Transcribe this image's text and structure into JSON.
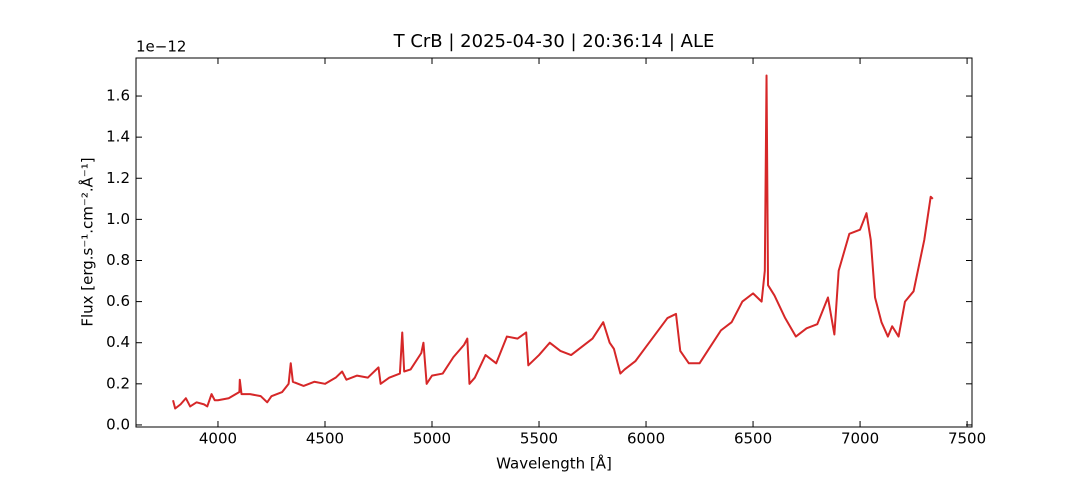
{
  "chart_data": {
    "type": "line",
    "title": "T CrB | 2025-04-30 | 20:36:14 | ALE",
    "x_label": "Wavelength [Å]",
    "y_label": "Flux [erg.s⁻¹.cm⁻².Å⁻¹]",
    "y_offset_label": "1e−12",
    "color": "#d62728",
    "xlim": [
      3617,
      7523
    ],
    "ylim": [
      -0.01,
      1.785
    ],
    "xticks": [
      4000,
      4500,
      5000,
      5500,
      6000,
      6500,
      7000,
      7500
    ],
    "yticks": [
      {
        "value": 0,
        "label": "0.0"
      },
      0.2,
      0.4,
      0.6,
      0.8,
      {
        "value": 1,
        "label": "1.0"
      },
      1.2,
      1.4,
      1.6
    ],
    "x": [
      3790,
      3800,
      3825,
      3850,
      3870,
      3900,
      3935,
      3950,
      3970,
      3985,
      4000,
      4050,
      4100,
      4102,
      4110,
      4150,
      4200,
      4230,
      4250,
      4300,
      4330,
      4340,
      4350,
      4400,
      4450,
      4500,
      4550,
      4580,
      4600,
      4650,
      4700,
      4750,
      4760,
      4800,
      4850,
      4861,
      4870,
      4900,
      4950,
      4960,
      4975,
      5000,
      5050,
      5100,
      5150,
      5165,
      5175,
      5200,
      5250,
      5300,
      5350,
      5400,
      5440,
      5450,
      5500,
      5550,
      5600,
      5650,
      5700,
      5750,
      5800,
      5830,
      5850,
      5880,
      5900,
      5950,
      6000,
      6050,
      6100,
      6140,
      6160,
      6200,
      6250,
      6300,
      6350,
      6400,
      6450,
      6500,
      6540,
      6555,
      6563,
      6570,
      6600,
      6650,
      6700,
      6750,
      6800,
      6850,
      6870,
      6880,
      6900,
      6950,
      7000,
      7030,
      7050,
      7070,
      7100,
      7130,
      7150,
      7180,
      7210,
      7250,
      7300,
      7330,
      7340
    ],
    "values": [
      0.12,
      0.08,
      0.1,
      0.13,
      0.09,
      0.11,
      0.1,
      0.09,
      0.15,
      0.12,
      0.12,
      0.13,
      0.16,
      0.22,
      0.15,
      0.15,
      0.14,
      0.11,
      0.14,
      0.16,
      0.2,
      0.3,
      0.21,
      0.19,
      0.21,
      0.2,
      0.23,
      0.26,
      0.22,
      0.24,
      0.23,
      0.28,
      0.2,
      0.23,
      0.25,
      0.45,
      0.26,
      0.27,
      0.35,
      0.4,
      0.2,
      0.24,
      0.25,
      0.33,
      0.39,
      0.42,
      0.2,
      0.23,
      0.34,
      0.3,
      0.43,
      0.42,
      0.45,
      0.29,
      0.34,
      0.4,
      0.36,
      0.34,
      0.38,
      0.42,
      0.5,
      0.4,
      0.37,
      0.25,
      0.27,
      0.31,
      0.38,
      0.45,
      0.52,
      0.54,
      0.36,
      0.3,
      0.3,
      0.38,
      0.46,
      0.5,
      0.6,
      0.64,
      0.6,
      0.75,
      1.7,
      0.68,
      0.63,
      0.52,
      0.43,
      0.47,
      0.49,
      0.62,
      0.5,
      0.44,
      0.75,
      0.93,
      0.95,
      1.03,
      0.9,
      0.62,
      0.5,
      0.43,
      0.48,
      0.43,
      0.6,
      0.65,
      0.9,
      1.11,
      1.1
    ]
  }
}
